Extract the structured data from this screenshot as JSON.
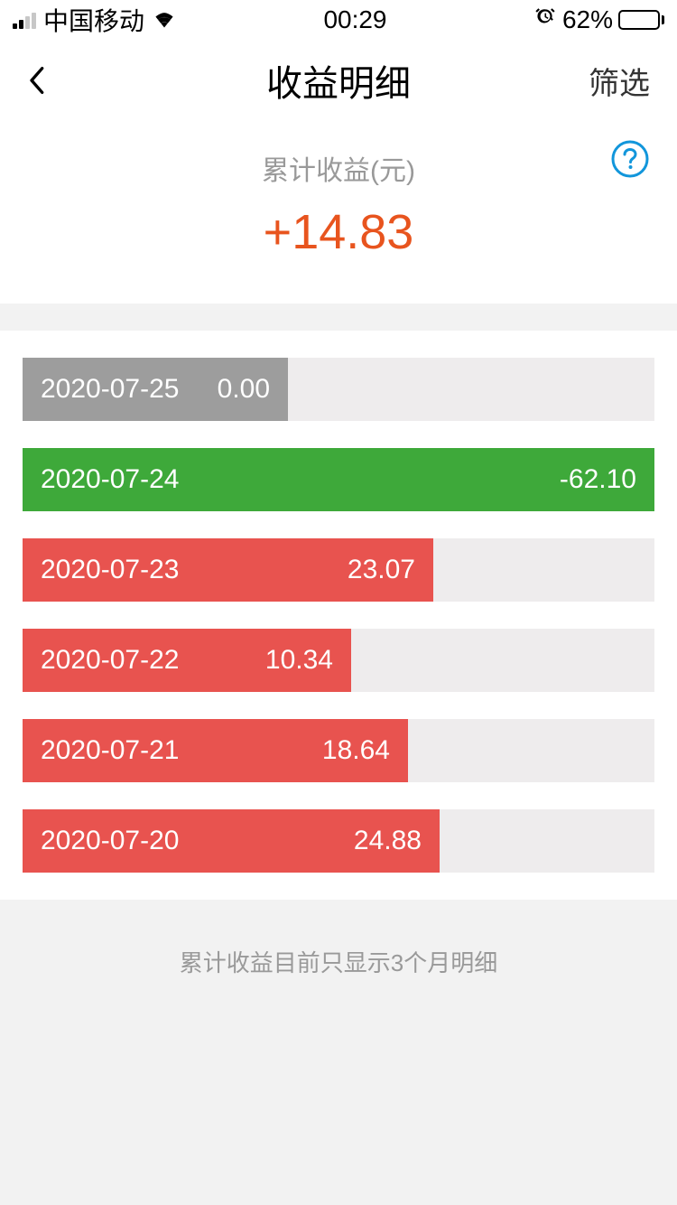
{
  "status": {
    "carrier": "中国移动",
    "time": "00:29",
    "battery_pct": "62%",
    "battery_fill_pct": 62
  },
  "nav": {
    "title": "收益明细",
    "filter_label": "筛选"
  },
  "summary": {
    "label": "累计收益(元)",
    "value": "+14.83",
    "value_color": "#e8541e",
    "help_color": "#1296db"
  },
  "colors": {
    "track": "#eeeced",
    "positive": "#e8534f",
    "negative": "#3ea93a",
    "zero": "#9d9d9d",
    "page_bg": "#f2f2f2"
  },
  "rows": [
    {
      "date": "2020-07-25",
      "value": "0.00",
      "width_pct": 42,
      "color": "#9d9d9d"
    },
    {
      "date": "2020-07-24",
      "value": "-62.10",
      "width_pct": 100,
      "color": "#3ea93a"
    },
    {
      "date": "2020-07-23",
      "value": "23.07",
      "width_pct": 65,
      "color": "#e8534f"
    },
    {
      "date": "2020-07-22",
      "value": "10.34",
      "width_pct": 52,
      "color": "#e8534f"
    },
    {
      "date": "2020-07-21",
      "value": "18.64",
      "width_pct": 61,
      "color": "#e8534f"
    },
    {
      "date": "2020-07-20",
      "value": "24.88",
      "width_pct": 66,
      "color": "#e8534f"
    }
  ],
  "footer_note": "累计收益目前只显示3个月明细"
}
